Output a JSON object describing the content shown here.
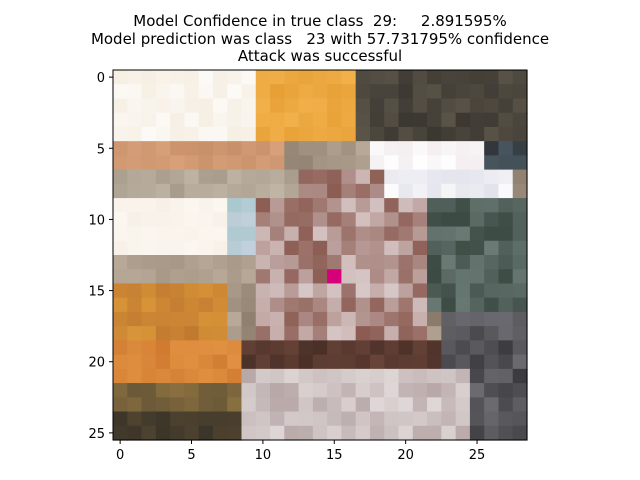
{
  "title_lines": [
    "Model Confidence in true class  29:     2.891595%",
    "Model prediction was class   23 with 57.731795% confidence",
    "Attack was successful"
  ],
  "figure": {
    "columns": 29,
    "rows": 26,
    "x_ticks": [
      0,
      5,
      10,
      15,
      20,
      25
    ],
    "y_ticks": [
      0,
      5,
      10,
      15,
      20,
      25
    ],
    "perturbed_pixel": {
      "col": 15,
      "row": 14,
      "color": "#d6007a"
    }
  }
}
